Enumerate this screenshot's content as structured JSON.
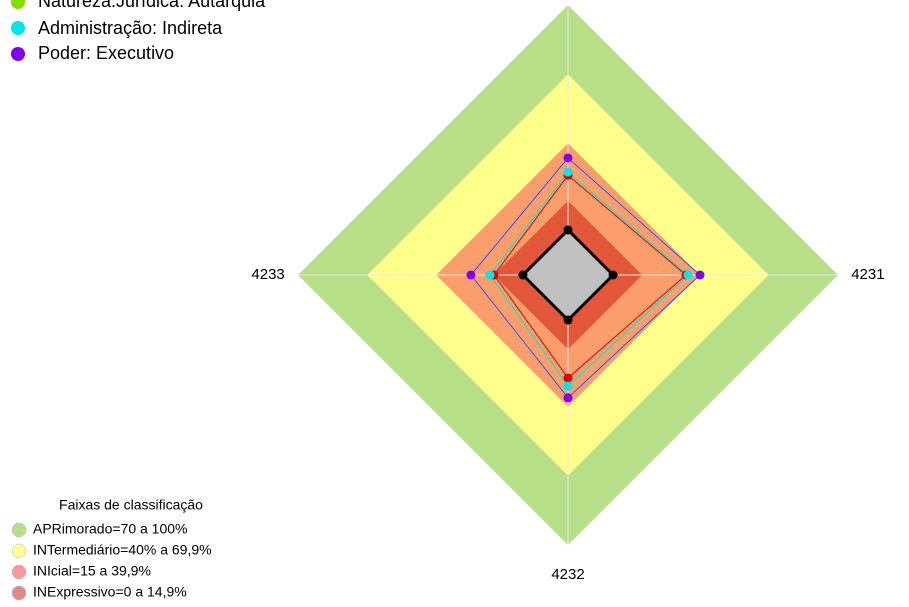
{
  "chart_data": {
    "type": "radar",
    "categories": [
      null,
      "4231",
      "4232",
      "4233"
    ],
    "rlim": [
      0,
      100
    ],
    "bands": [
      {
        "label": "APRimorado=70 a 100%",
        "color": "#b6df88",
        "legend_color": "#b6df88",
        "from": 70,
        "to": 100
      },
      {
        "label": "INTermediário=40% a 69,9%",
        "color": "#ffff8c",
        "legend_color": "#ffff99",
        "from": 40,
        "to": 69.9
      },
      {
        "label": "INIcial=15 a 39,9%",
        "color": "#fb9e6c",
        "legend_color": "#f99a9a",
        "from": 15,
        "to": 39.9
      },
      {
        "label": "INExpressivo=0 a 14,9%",
        "color": "#e2563a",
        "legend_color": "#e08888",
        "from": 0,
        "to": 14.9
      }
    ],
    "bands_title": "Faixas de classificação",
    "series": [
      {
        "color": "#000000",
        "fill": "#c0c0c0",
        "values": [
          2.2,
          2.2,
          2.2,
          2.2
        ]
      },
      {
        "color": "#e00000",
        "values": [
          26,
          33.9,
          27.4,
          14.8
        ]
      },
      {
        "name": "Natureza:Jurídica: Autarquia",
        "color": "#7fe000",
        "values": [
          27.4,
          34.8,
          30.9,
          16.5
        ]
      },
      {
        "name": "Administração: Indireta",
        "color": "#00e5ee",
        "values": [
          27.4,
          34.8,
          30.9,
          16.5
        ]
      },
      {
        "name": "Poder: Executivo",
        "color": "#8000ee",
        "line_color": "#3355ff",
        "values": [
          33.5,
          40,
          36,
          24.8
        ]
      }
    ]
  }
}
